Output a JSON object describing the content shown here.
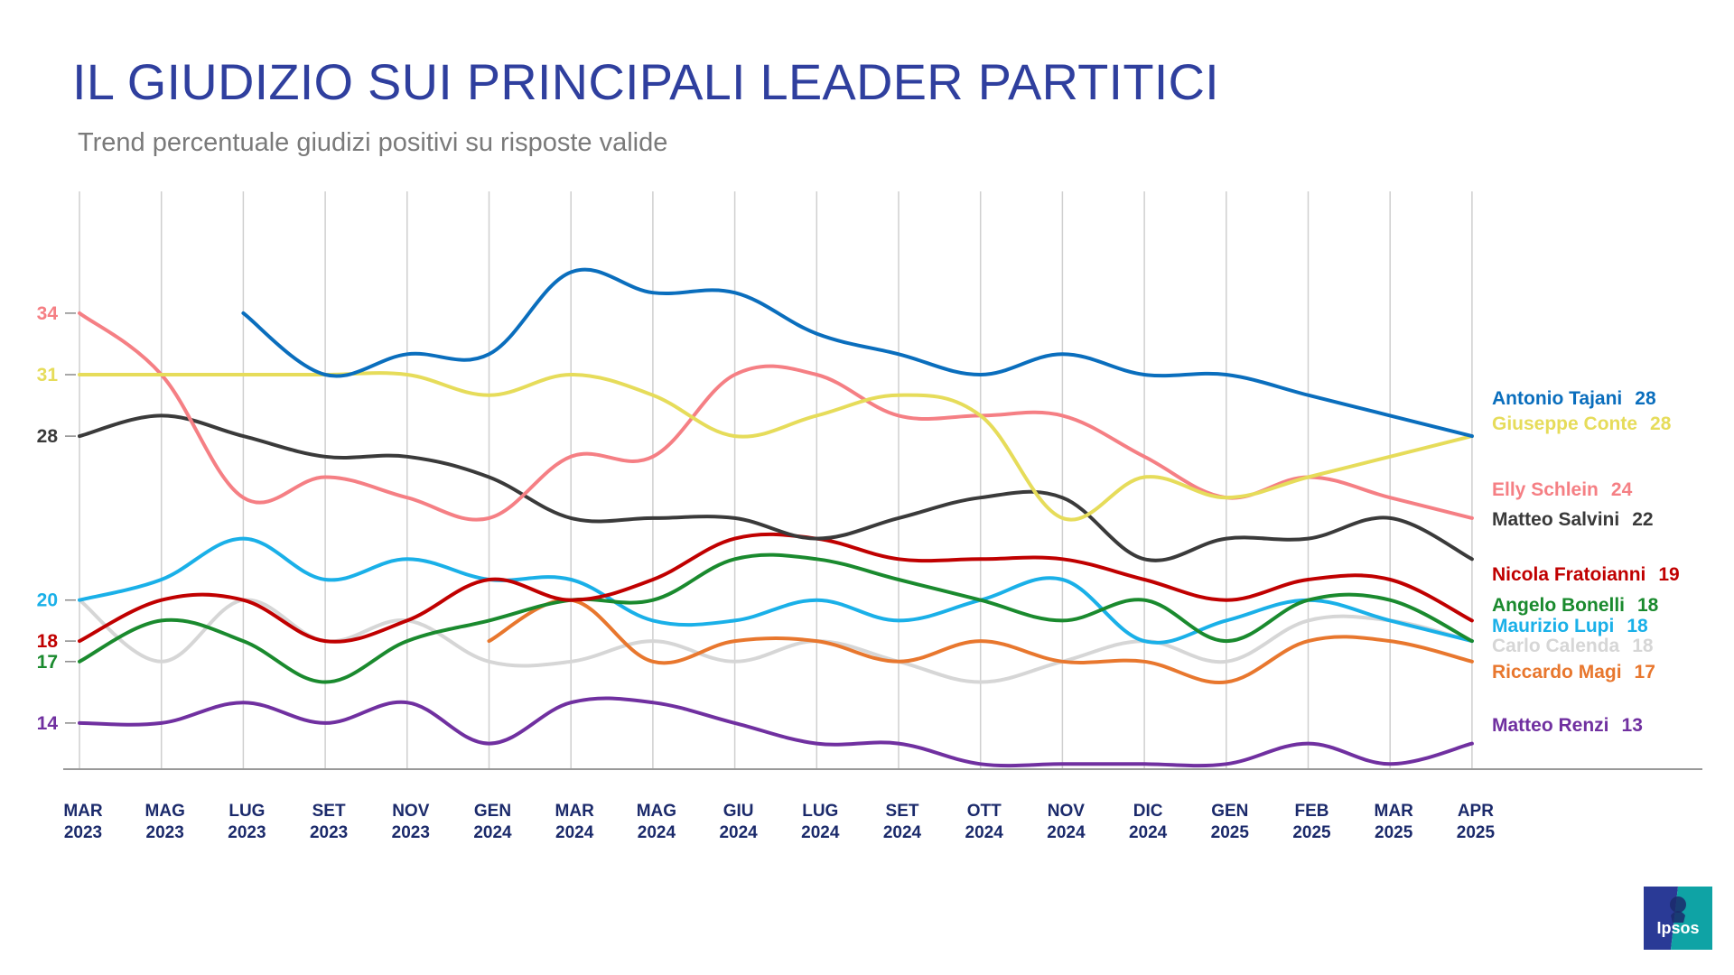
{
  "title": "IL GIUDIZIO SUI PRINCIPALI LEADER PARTITICI",
  "subtitle": "Trend percentuale giudizi positivi su risposte valide",
  "logo_text": "Ipsos",
  "colors": {
    "title": "#2f3f9e",
    "subtitle": "#7a7a7a",
    "grid": "#cfcfcf",
    "axis": "#999999",
    "tick_text": "#1b2a6b",
    "logo_left": "#2a3a96",
    "logo_right": "#0fa3a5"
  },
  "chart_data": {
    "type": "line",
    "x": [
      "MAR 2023",
      "MAG 2023",
      "LUG 2023",
      "SET 2023",
      "NOV 2023",
      "GEN 2024",
      "MAR 2024",
      "MAG 2024",
      "GIU 2024",
      "LUG 2024",
      "SET 2024",
      "OTT 2024",
      "NOV 2024",
      "DIC 2024",
      "GEN 2025",
      "FEB 2025",
      "MAR 2025",
      "APR 2025"
    ],
    "ylim": [
      11,
      39
    ],
    "grid": "vertical",
    "series": [
      {
        "name": "Carlo Calenda",
        "color": "#d6d6d6",
        "end_value": 18,
        "start_label": null,
        "values": [
          20,
          17,
          20,
          18,
          19,
          17,
          17,
          18,
          17,
          18,
          17,
          16,
          17,
          18,
          17,
          19,
          19,
          18
        ]
      },
      {
        "name": "Riccardo Magi",
        "color": "#e8772e",
        "end_value": 17,
        "start_label": null,
        "values": [
          null,
          null,
          null,
          null,
          null,
          18,
          20,
          17,
          18,
          18,
          17,
          18,
          17,
          17,
          16,
          18,
          18,
          17
        ]
      },
      {
        "name": "Matteo Renzi",
        "color": "#7030a0",
        "end_value": 13,
        "start_label": "14",
        "values": [
          14,
          14,
          15,
          14,
          15,
          13,
          15,
          15,
          14,
          13,
          13,
          12,
          12,
          12,
          12,
          13,
          12,
          13
        ]
      },
      {
        "name": "Maurizio Lupi",
        "color": "#1ab0e8",
        "end_value": 18,
        "start_label": "20",
        "values": [
          20,
          21,
          23,
          21,
          22,
          21,
          21,
          19,
          19,
          20,
          19,
          20,
          21,
          18,
          19,
          20,
          19,
          18
        ]
      },
      {
        "name": "Angelo Bonelli",
        "color": "#1a8a2e",
        "end_value": 18,
        "start_label": "17",
        "values": [
          17,
          19,
          18,
          16,
          18,
          19,
          20,
          20,
          22,
          22,
          21,
          20,
          19,
          20,
          18,
          20,
          20,
          18
        ]
      },
      {
        "name": "Nicola Fratoianni",
        "color": "#c00000",
        "end_value": 19,
        "start_label": "18",
        "values": [
          18,
          20,
          20,
          18,
          19,
          21,
          20,
          21,
          23,
          23,
          22,
          22,
          22,
          21,
          20,
          21,
          21,
          19
        ]
      },
      {
        "name": "Matteo Salvini",
        "color": "#3a3a3a",
        "end_value": 22,
        "start_label": "28",
        "values": [
          28,
          29,
          28,
          27,
          27,
          26,
          24,
          24,
          24,
          23,
          24,
          25,
          25,
          22,
          23,
          23,
          24,
          22
        ]
      },
      {
        "name": "Elly Schlein",
        "color": "#f57f84",
        "end_value": 24,
        "start_label": "34",
        "values": [
          34,
          31,
          25,
          26,
          25,
          24,
          27,
          27,
          31,
          31,
          29,
          29,
          29,
          27,
          25,
          26,
          25,
          24
        ]
      },
      {
        "name": "Giuseppe Conte",
        "color": "#e6dc5a",
        "end_value": 28,
        "start_label": "31",
        "values": [
          31,
          31,
          31,
          31,
          31,
          30,
          31,
          30,
          28,
          29,
          30,
          29,
          24,
          26,
          25,
          26,
          27,
          28
        ]
      },
      {
        "name": "Antonio Tajani",
        "color": "#0a6ebd",
        "end_value": 28,
        "start_label": null,
        "values": [
          null,
          null,
          34,
          31,
          32,
          32,
          36,
          35,
          35,
          33,
          32,
          31,
          32,
          31,
          31,
          30,
          29,
          28
        ]
      }
    ],
    "end_label_order": [
      "Antonio Tajani",
      "Giuseppe Conte",
      "Elly Schlein",
      "Matteo Salvini",
      "Nicola Fratoianni",
      "Angelo Bonelli",
      "Maurizio Lupi",
      "Carlo Calenda",
      "Riccardo Magi",
      "Matteo Renzi"
    ]
  }
}
